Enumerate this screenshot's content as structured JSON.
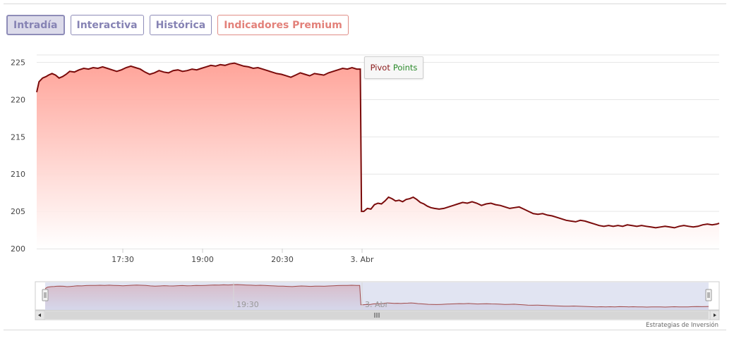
{
  "tabs": [
    {
      "label": "Intradía",
      "state": "active"
    },
    {
      "label": "Interactiva",
      "state": "normal"
    },
    {
      "label": "Histórica",
      "state": "normal"
    },
    {
      "label": "Indicadores Premium",
      "state": "premium"
    }
  ],
  "legend": {
    "word1": "Pivot",
    "word2": "Points",
    "color1": "#8b1a1a",
    "color2": "#2a8a2a"
  },
  "credit": "Estrategias de Inversión",
  "colors": {
    "line": "#7a0b0b",
    "area_top": "#ff9f94",
    "area_bottom": "#ffffff",
    "navigator_mask": "#c8cde8"
  },
  "chart_data": {
    "type": "area",
    "title": "",
    "xlabel": "",
    "ylabel": "",
    "x_ticks": [
      "17:30",
      "19:00",
      "20:30",
      "3. Abr"
    ],
    "y_ticks": [
      200,
      205,
      210,
      215,
      220,
      225
    ],
    "ylim": [
      200,
      226
    ],
    "x_unit": "minutes since 16:30",
    "x_range": [
      0,
      580
    ],
    "grid": "horizontal",
    "series": [
      {
        "values": [
          [
            0,
            221.0
          ],
          [
            2,
            222.4
          ],
          [
            5,
            222.9
          ],
          [
            8,
            223.1
          ],
          [
            10,
            223.3
          ],
          [
            13,
            223.5
          ],
          [
            16,
            223.3
          ],
          [
            19,
            222.9
          ],
          [
            22,
            223.1
          ],
          [
            25,
            223.4
          ],
          [
            28,
            223.8
          ],
          [
            32,
            223.7
          ],
          [
            36,
            224.0
          ],
          [
            40,
            224.2
          ],
          [
            44,
            224.1
          ],
          [
            48,
            224.3
          ],
          [
            52,
            224.2
          ],
          [
            56,
            224.4
          ],
          [
            60,
            224.2
          ],
          [
            64,
            224.0
          ],
          [
            68,
            223.8
          ],
          [
            72,
            224.0
          ],
          [
            76,
            224.3
          ],
          [
            80,
            224.5
          ],
          [
            84,
            224.3
          ],
          [
            88,
            224.1
          ],
          [
            92,
            223.7
          ],
          [
            96,
            223.4
          ],
          [
            100,
            223.6
          ],
          [
            104,
            223.9
          ],
          [
            108,
            223.7
          ],
          [
            112,
            223.6
          ],
          [
            116,
            223.9
          ],
          [
            120,
            224.0
          ],
          [
            124,
            223.8
          ],
          [
            128,
            223.9
          ],
          [
            132,
            224.1
          ],
          [
            136,
            224.0
          ],
          [
            140,
            224.2
          ],
          [
            144,
            224.4
          ],
          [
            148,
            224.6
          ],
          [
            152,
            224.5
          ],
          [
            156,
            224.7
          ],
          [
            160,
            224.6
          ],
          [
            164,
            224.8
          ],
          [
            168,
            224.9
          ],
          [
            172,
            224.7
          ],
          [
            176,
            224.5
          ],
          [
            180,
            224.4
          ],
          [
            184,
            224.2
          ],
          [
            188,
            224.3
          ],
          [
            192,
            224.1
          ],
          [
            196,
            223.9
          ],
          [
            200,
            223.7
          ],
          [
            204,
            223.5
          ],
          [
            208,
            223.4
          ],
          [
            212,
            223.2
          ],
          [
            216,
            223.0
          ],
          [
            220,
            223.3
          ],
          [
            224,
            223.6
          ],
          [
            228,
            223.4
          ],
          [
            232,
            223.2
          ],
          [
            236,
            223.5
          ],
          [
            240,
            223.4
          ],
          [
            244,
            223.3
          ],
          [
            248,
            223.6
          ],
          [
            252,
            223.8
          ],
          [
            256,
            224.0
          ],
          [
            260,
            224.2
          ],
          [
            264,
            224.1
          ],
          [
            268,
            224.3
          ],
          [
            272,
            224.1
          ],
          [
            275,
            224.1
          ],
          [
            276,
            205.0
          ],
          [
            278,
            205.0
          ],
          [
            281,
            205.4
          ],
          [
            284,
            205.3
          ],
          [
            287,
            205.9
          ],
          [
            290,
            206.1
          ],
          [
            293,
            206.0
          ],
          [
            296,
            206.4
          ],
          [
            299,
            206.9
          ],
          [
            302,
            206.7
          ],
          [
            305,
            206.4
          ],
          [
            308,
            206.5
          ],
          [
            311,
            206.3
          ],
          [
            314,
            206.6
          ],
          [
            317,
            206.7
          ],
          [
            320,
            206.9
          ],
          [
            323,
            206.6
          ],
          [
            326,
            206.2
          ],
          [
            329,
            206.0
          ],
          [
            332,
            205.7
          ],
          [
            335,
            205.5
          ],
          [
            338,
            205.4
          ],
          [
            342,
            205.3
          ],
          [
            346,
            205.4
          ],
          [
            350,
            205.6
          ],
          [
            354,
            205.8
          ],
          [
            358,
            206.0
          ],
          [
            362,
            206.2
          ],
          [
            366,
            206.1
          ],
          [
            370,
            206.3
          ],
          [
            374,
            206.1
          ],
          [
            378,
            205.8
          ],
          [
            382,
            206.0
          ],
          [
            386,
            206.1
          ],
          [
            390,
            205.9
          ],
          [
            394,
            205.8
          ],
          [
            398,
            205.6
          ],
          [
            402,
            205.4
          ],
          [
            406,
            205.5
          ],
          [
            410,
            205.6
          ],
          [
            414,
            205.3
          ],
          [
            418,
            205.0
          ],
          [
            422,
            204.7
          ],
          [
            426,
            204.6
          ],
          [
            430,
            204.7
          ],
          [
            434,
            204.5
          ],
          [
            438,
            204.4
          ],
          [
            442,
            204.2
          ],
          [
            446,
            204.0
          ],
          [
            450,
            203.8
          ],
          [
            454,
            203.7
          ],
          [
            458,
            203.6
          ],
          [
            462,
            203.8
          ],
          [
            466,
            203.7
          ],
          [
            470,
            203.5
          ],
          [
            474,
            203.3
          ],
          [
            478,
            203.1
          ],
          [
            482,
            203.0
          ],
          [
            486,
            203.1
          ],
          [
            490,
            203.0
          ],
          [
            494,
            203.1
          ],
          [
            498,
            203.0
          ],
          [
            502,
            203.2
          ],
          [
            506,
            203.1
          ],
          [
            510,
            203.0
          ],
          [
            514,
            203.1
          ],
          [
            518,
            203.0
          ],
          [
            522,
            202.9
          ],
          [
            526,
            202.8
          ],
          [
            530,
            202.9
          ],
          [
            534,
            203.0
          ],
          [
            538,
            202.9
          ],
          [
            542,
            202.8
          ],
          [
            546,
            203.0
          ],
          [
            550,
            203.1
          ],
          [
            554,
            203.0
          ],
          [
            558,
            202.9
          ],
          [
            562,
            203.0
          ],
          [
            566,
            203.2
          ],
          [
            570,
            203.3
          ],
          [
            574,
            203.2
          ],
          [
            578,
            203.3
          ],
          [
            580,
            203.4
          ]
        ]
      }
    ],
    "navigator": {
      "x_ticks": [
        "19:30",
        "3. Abr"
      ]
    }
  }
}
